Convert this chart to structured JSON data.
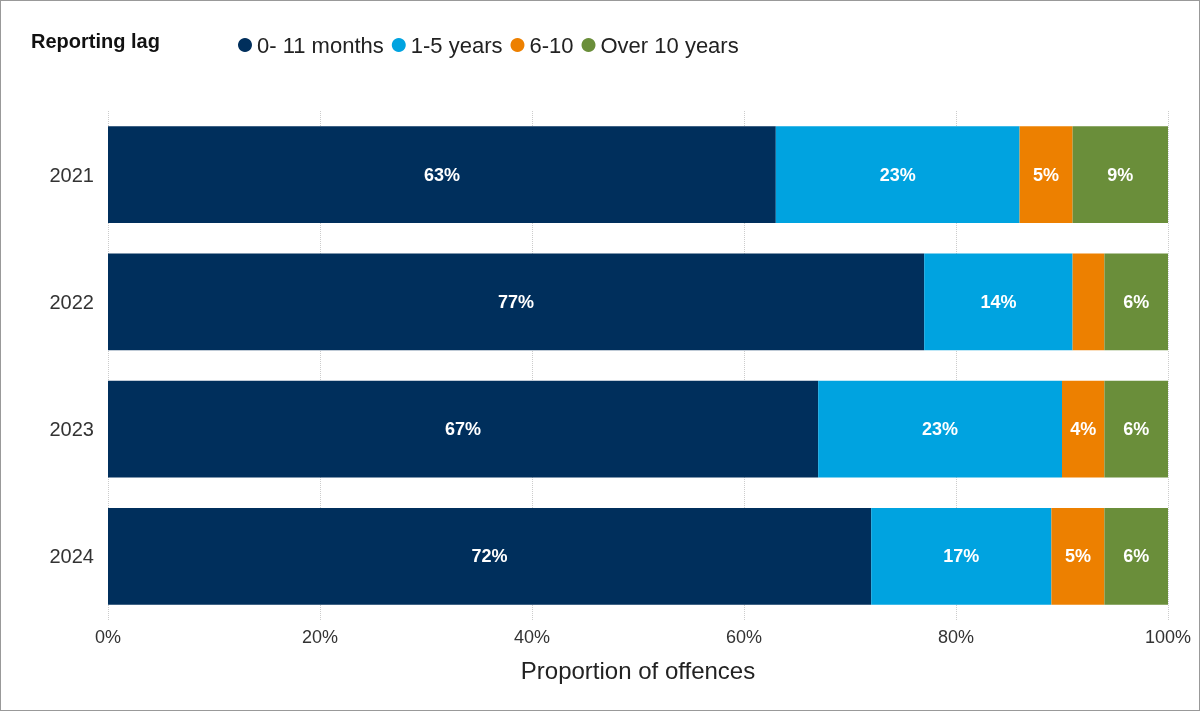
{
  "chart_data": {
    "type": "bar",
    "orientation": "horizontal",
    "stacked": true,
    "legend_title": "Reporting lag",
    "legend": "top left",
    "grid": "x",
    "xlabel": "Proportion of offences",
    "categories": [
      "2021",
      "2022",
      "2023",
      "2024"
    ],
    "xlim": [
      0,
      100
    ],
    "xticks": [
      {
        "value": 0,
        "label": "0%"
      },
      {
        "value": 20,
        "label": "20%"
      },
      {
        "value": 40,
        "label": "40%"
      },
      {
        "value": 60,
        "label": "60%"
      },
      {
        "value": 80,
        "label": "80%"
      },
      {
        "value": 100,
        "label": "100%"
      }
    ],
    "series": [
      {
        "name": "0- 11 months",
        "color": "#002f5c",
        "values": [
          63,
          77,
          67,
          72
        ],
        "value_labels": [
          "63%",
          "77%",
          "67%",
          "72%"
        ]
      },
      {
        "name": "1-5 years",
        "color": "#00a3e0",
        "values": [
          23,
          14,
          23,
          17
        ],
        "value_labels": [
          "23%",
          "14%",
          "23%",
          "17%"
        ]
      },
      {
        "name": "6-10",
        "color": "#ed8000",
        "values": [
          5,
          3,
          4,
          5
        ],
        "value_labels": [
          "5%",
          null,
          "4%",
          "5%"
        ]
      },
      {
        "name": "Over 10 years",
        "color": "#6a8e3a",
        "values": [
          9,
          6,
          6,
          6
        ],
        "value_labels": [
          "9%",
          "6%",
          "6%",
          "6%"
        ]
      }
    ]
  }
}
